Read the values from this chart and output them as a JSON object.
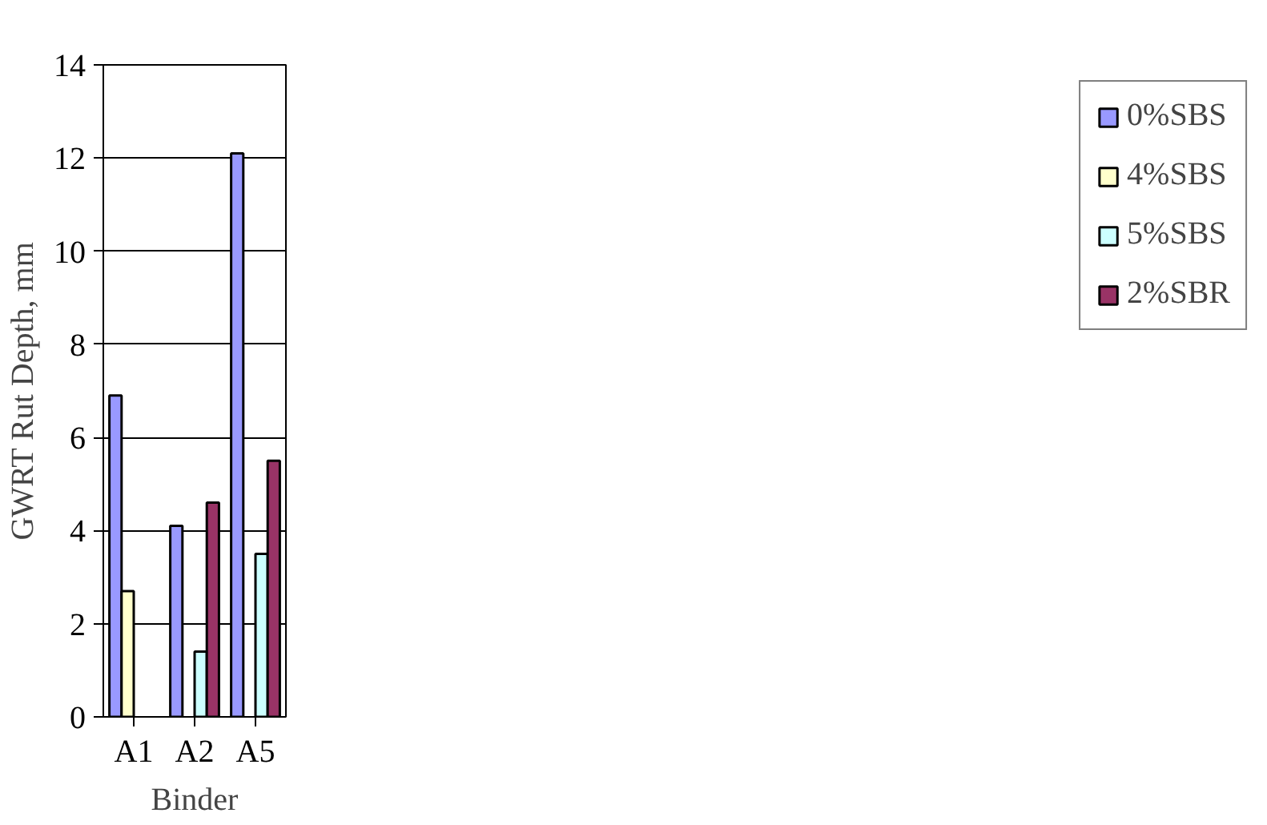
{
  "chart_data": {
    "type": "bar",
    "xlabel": "Binder",
    "ylabel": "GWRT Rut Depth, mm",
    "categories": [
      "A1",
      "A2",
      "A5"
    ],
    "series": [
      {
        "name": "0%SBS",
        "color": "#9999ff",
        "values": [
          6.9,
          4.1,
          12.1
        ]
      },
      {
        "name": "4%SBS",
        "color": "#ffffcc",
        "values": [
          2.7,
          null,
          null
        ]
      },
      {
        "name": "5%SBS",
        "color": "#ccffff",
        "values": [
          null,
          1.4,
          3.5
        ]
      },
      {
        "name": "2%SBR",
        "color": "#993366",
        "values": [
          null,
          4.6,
          5.5
        ]
      }
    ],
    "ylim": [
      0,
      14
    ],
    "yticks": [
      0,
      2,
      4,
      6,
      8,
      10,
      12,
      14
    ],
    "grid": "y",
    "legend": "right"
  }
}
